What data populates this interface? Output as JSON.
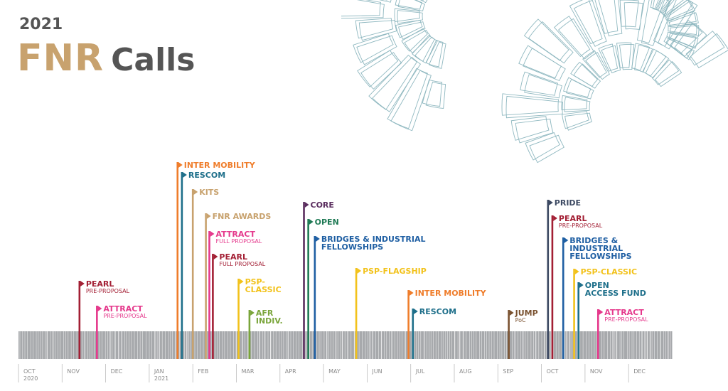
{
  "header": {
    "year": "2021",
    "title_part1": "FNR",
    "title_part2": "Calls"
  },
  "colors": {
    "gold": "#c8a26e",
    "grey_text": "#555555",
    "deco_line": "#8fb8c0",
    "timeline_bar": "#a7a9ac",
    "timeline_ticks": "#ffffff"
  },
  "months": [
    {
      "label": "OCT",
      "sub": "2020"
    },
    {
      "label": "NOV",
      "sub": ""
    },
    {
      "label": "DEC",
      "sub": ""
    },
    {
      "label": "JAN",
      "sub": "2021"
    },
    {
      "label": "FEB",
      "sub": ""
    },
    {
      "label": "MAR",
      "sub": ""
    },
    {
      "label": "APR",
      "sub": ""
    },
    {
      "label": "MAY",
      "sub": ""
    },
    {
      "label": "JUN",
      "sub": ""
    },
    {
      "label": "JUL",
      "sub": ""
    },
    {
      "label": "AUG",
      "sub": ""
    },
    {
      "label": "SEP",
      "sub": ""
    },
    {
      "label": "OCT",
      "sub": ""
    },
    {
      "label": "NOV",
      "sub": ""
    },
    {
      "label": "DEC",
      "sub": ""
    }
  ],
  "calls": [
    {
      "name": "PEARL",
      "sub": "PRE-PROPOSAL",
      "color": "#a31f34",
      "month": 1.4
    },
    {
      "name": "ATTRACT",
      "sub": "PRE-PROPOSAL",
      "color": "#e5398c",
      "month": 1.8
    },
    {
      "name": "INTER MOBILITY",
      "sub": "",
      "color": "#ef7d2b",
      "month": 3.65
    },
    {
      "name": "RESCOM",
      "sub": "",
      "color": "#1e6f8a",
      "month": 3.75
    },
    {
      "name": "KITS",
      "sub": "",
      "color": "#c8a26e",
      "month": 4.0
    },
    {
      "name": "FNR AWARDS",
      "sub": "",
      "color": "#c8a26e",
      "month": 4.3
    },
    {
      "name": "ATTRACT",
      "sub": "FULL PROPOSAL",
      "color": "#e5398c",
      "month": 4.38
    },
    {
      "name": "PEARL",
      "sub": "FULL PROPOSAL",
      "color": "#a31f34",
      "month": 4.46
    },
    {
      "name": "PSP-\nCLASSIC",
      "sub": "",
      "color": "#f2c21b",
      "month": 5.05
    },
    {
      "name": "AFR\nINDIV.",
      "sub": "",
      "color": "#7aa53a",
      "month": 5.3
    },
    {
      "name": "CORE",
      "sub": "",
      "color": "#5a2d5e",
      "month": 6.55
    },
    {
      "name": "OPEN",
      "sub": "",
      "color": "#1f7a55",
      "month": 6.65
    },
    {
      "name": "BRIDGES & INDUSTRIAL\nFELLOWSHIPS",
      "sub": "",
      "color": "#1f5fa3",
      "month": 6.8
    },
    {
      "name": "PSP-FLAGSHIP",
      "sub": "",
      "color": "#f2c21b",
      "month": 7.75
    },
    {
      "name": "INTER MOBILITY",
      "sub": "",
      "color": "#ef7d2b",
      "month": 8.95
    },
    {
      "name": "RESCOM",
      "sub": "",
      "color": "#1e6f8a",
      "month": 9.05
    },
    {
      "name": "JUMP",
      "sub": "PoC",
      "color": "#7a5230",
      "month": 11.25
    },
    {
      "name": "PRIDE",
      "sub": "",
      "color": "#3d4a63",
      "month": 12.15
    },
    {
      "name": "PEARL",
      "sub": "PRE-PROPOSAL",
      "color": "#a31f34",
      "month": 12.25
    },
    {
      "name": "BRIDGES &\nINDUSTRIAL\nFELLOWSHIPS",
      "sub": "",
      "color": "#1f5fa3",
      "month": 12.5
    },
    {
      "name": "PSP-CLASSIC",
      "sub": "",
      "color": "#f2c21b",
      "month": 12.75
    },
    {
      "name": "OPEN\nACCESS FUND",
      "sub": "",
      "color": "#1e6f8a",
      "month": 12.85
    },
    {
      "name": "ATTRACT",
      "sub": "PRE-PROPOSAL",
      "color": "#e5398c",
      "month": 13.3
    }
  ]
}
